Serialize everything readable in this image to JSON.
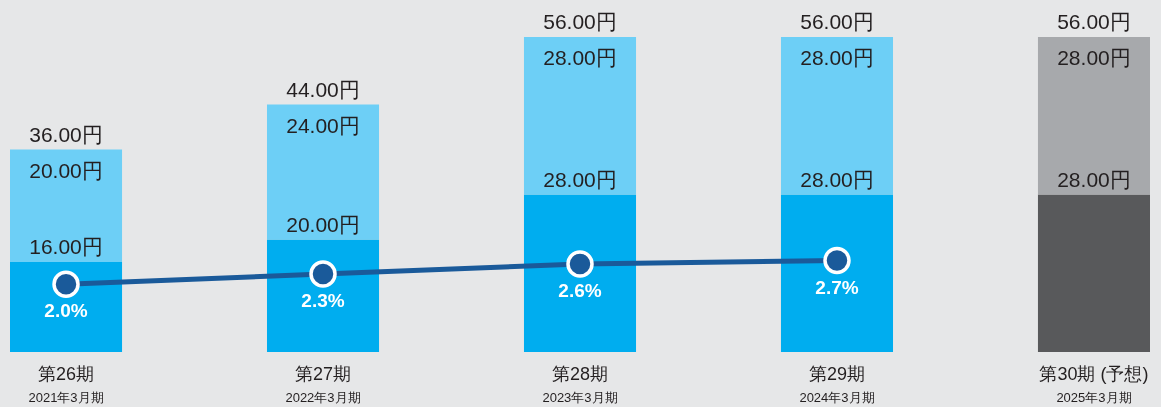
{
  "chart_data": {
    "type": "bar",
    "stacked": true,
    "categories": [
      "第26期\n2021年3月期",
      "第27期\n2022年3月期",
      "第28期\n2023年3月期",
      "第29期\n2024年3月期",
      "第30期 (予想)\n2025年3月期"
    ],
    "ylim": [
      0,
      56
    ],
    "y2lim": [
      0,
      9.3
    ],
    "tick_labels": "x",
    "series": [
      {
        "colors": [
          "#00adef",
          "#00adef",
          "#00adef",
          "#00adef",
          "#58595b"
        ],
        "values": [
          16,
          20,
          28,
          28,
          28
        ],
        "value_labels": [
          "16.00円",
          "20.00円",
          "28.00円",
          "28.00円",
          "28.00円"
        ]
      },
      {
        "colors": [
          "#6dcff6",
          "#6dcff6",
          "#6dcff6",
          "#6dcff6",
          "#a7a9ac"
        ],
        "values": [
          20,
          24,
          28,
          28,
          28
        ],
        "value_labels": [
          "20.00円",
          "24.00円",
          "28.00円",
          "28.00円",
          "28.00円"
        ]
      },
      {
        "type": "line",
        "axis": "y2",
        "color": "#1a5a9a",
        "marker": "circle",
        "values": [
          2.0,
          2.3,
          2.6,
          2.7,
          null
        ],
        "value_labels": [
          "2.0%",
          "2.3%",
          "2.6%",
          "2.7%",
          null
        ]
      }
    ],
    "totals": [
      "36.00円",
      "44.00円",
      "56.00円",
      "56.00円",
      "56.00円"
    ]
  }
}
